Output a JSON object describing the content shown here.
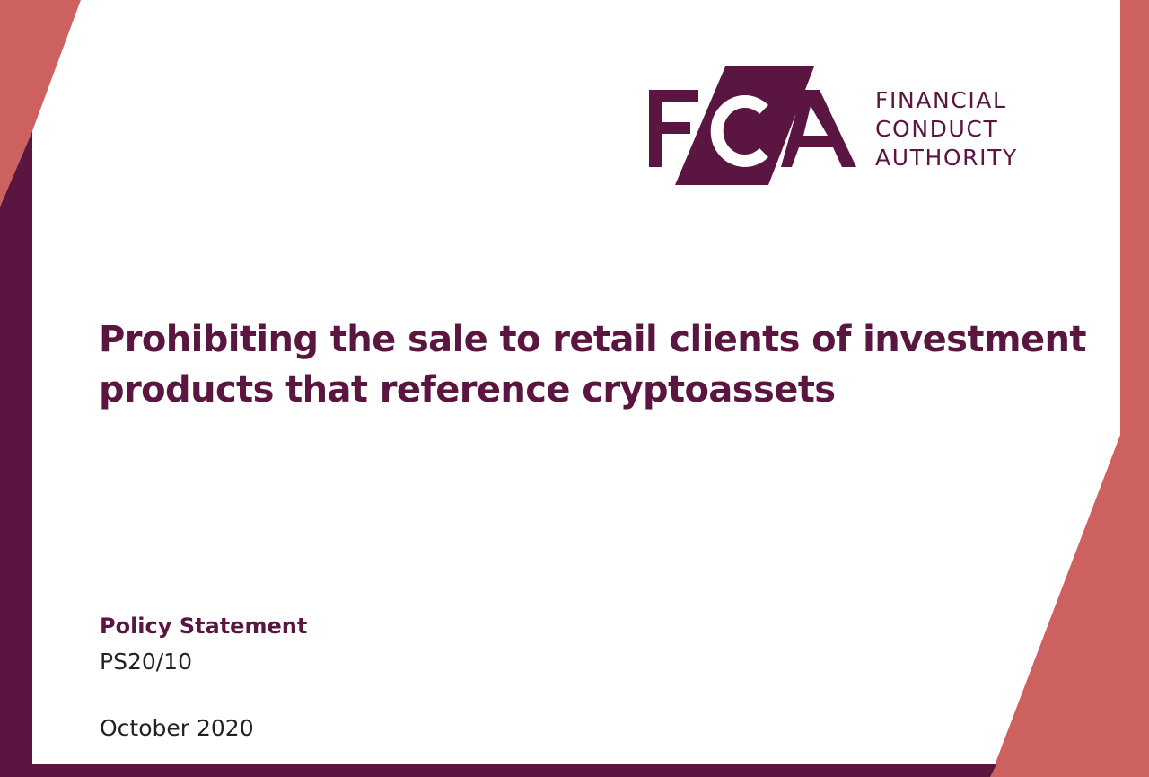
{
  "brand": {
    "logo_letters": "FCA",
    "logo_text_lines": [
      "FINANCIAL",
      "CONDUCT",
      "AUTHORITY"
    ],
    "colors": {
      "plum": "#5a1540",
      "coral": "#cd6160",
      "white": "#ffffff"
    }
  },
  "document": {
    "title": "Prohibiting the sale to retail clients of investment products that reference cryptoassets",
    "type": "Policy Statement",
    "reference": "PS20/10",
    "date": "October 2020"
  }
}
